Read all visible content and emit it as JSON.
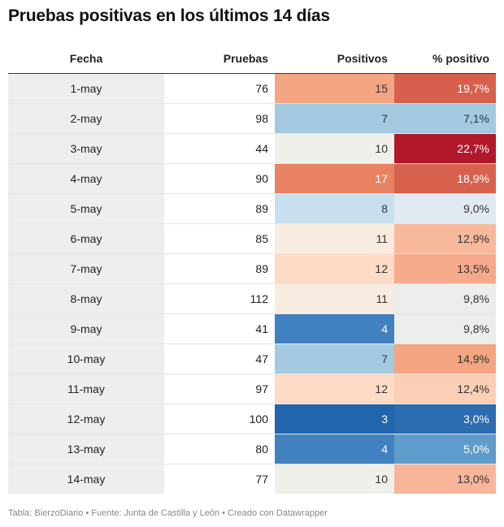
{
  "title": "Pruebas positivas en los últimos 14 días",
  "footer": "Tabla: BierzoDiario • Fuente: Junta de Castilla y León • Creado con Datawrapper",
  "chart_data": {
    "type": "table",
    "title": "Pruebas positivas en los últimos 14 días",
    "columns": [
      "Fecha",
      "Pruebas",
      "Positivos",
      "% positivo"
    ],
    "rows": [
      {
        "fecha": "1-may",
        "pruebas": "76",
        "positivos": "15",
        "pct": "19,7%",
        "pos_color": "#f4a582",
        "pct_color": "#d6604d",
        "pos_text": "#333333",
        "pct_text": "#ffffff"
      },
      {
        "fecha": "2-may",
        "pruebas": "98",
        "positivos": "7",
        "pct": "7,1%",
        "pos_color": "#a3cae1",
        "pct_color": "#a3cae1",
        "pos_text": "#333333",
        "pct_text": "#333333"
      },
      {
        "fecha": "3-may",
        "pruebas": "44",
        "positivos": "10",
        "pct": "22,7%",
        "pos_color": "#f0f0ea",
        "pct_color": "#b2182b",
        "pos_text": "#333333",
        "pct_text": "#ffffff"
      },
      {
        "fecha": "4-may",
        "pruebas": "90",
        "positivos": "17",
        "pct": "18,9%",
        "pos_color": "#e98261",
        "pct_color": "#d9624f",
        "pos_text": "#ffffff",
        "pct_text": "#ffffff"
      },
      {
        "fecha": "5-may",
        "pruebas": "89",
        "positivos": "8",
        "pct": "9,0%",
        "pos_color": "#c8dfee",
        "pct_color": "#e1eaf0",
        "pos_text": "#333333",
        "pct_text": "#333333"
      },
      {
        "fecha": "6-may",
        "pruebas": "85",
        "positivos": "11",
        "pct": "12,9%",
        "pos_color": "#f8ece0",
        "pct_color": "#f8b89b",
        "pos_text": "#333333",
        "pct_text": "#333333"
      },
      {
        "fecha": "7-may",
        "pruebas": "89",
        "positivos": "12",
        "pct": "13,5%",
        "pos_color": "#fddbc7",
        "pct_color": "#f6aa8b",
        "pos_text": "#333333",
        "pct_text": "#333333"
      },
      {
        "fecha": "8-may",
        "pruebas": "112",
        "positivos": "11",
        "pct": "9,8%",
        "pos_color": "#f8ece0",
        "pct_color": "#ebeeea",
        "pos_text": "#333333",
        "pct_text": "#333333"
      },
      {
        "fecha": "9-may",
        "pruebas": "41",
        "positivos": "4",
        "pct": "9,8%",
        "pos_color": "#4181bf",
        "pct_color": "#ebeeea",
        "pos_text": "#ffffff",
        "pct_text": "#333333"
      },
      {
        "fecha": "10-may",
        "pruebas": "47",
        "positivos": "7",
        "pct": "14,9%",
        "pos_color": "#a3cae1",
        "pct_color": "#f4a582",
        "pos_text": "#333333",
        "pct_text": "#333333"
      },
      {
        "fecha": "11-may",
        "pruebas": "97",
        "positivos": "12",
        "pct": "12,4%",
        "pos_color": "#fddbc7",
        "pct_color": "#fbcfb6",
        "pos_text": "#333333",
        "pct_text": "#333333"
      },
      {
        "fecha": "12-may",
        "pruebas": "100",
        "positivos": "3",
        "pct": "3,0%",
        "pos_color": "#2166ac",
        "pct_color": "#2c6cb0",
        "pos_text": "#ffffff",
        "pct_text": "#ffffff"
      },
      {
        "fecha": "13-may",
        "pruebas": "80",
        "positivos": "4",
        "pct": "5,0%",
        "pos_color": "#4181bf",
        "pct_color": "#5e9ccb",
        "pos_text": "#ffffff",
        "pct_text": "#ffffff"
      },
      {
        "fecha": "14-may",
        "pruebas": "77",
        "positivos": "10",
        "pct": "13,0%",
        "pos_color": "#f0f0ea",
        "pct_color": "#f8b59a",
        "pos_text": "#333333",
        "pct_text": "#333333"
      }
    ]
  }
}
